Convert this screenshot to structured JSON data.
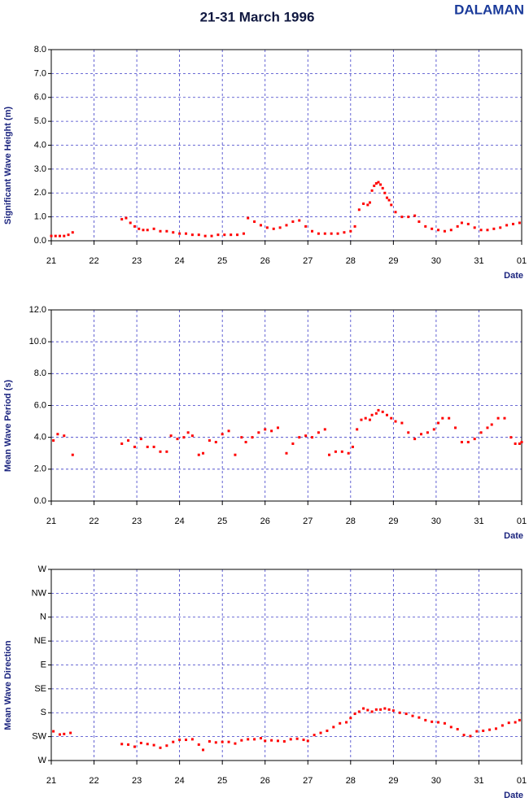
{
  "title": "21-31 March 1996",
  "station": "DALAMAN",
  "chart_data": [
    {
      "type": "scatter",
      "y_label": "Significant Wave Height (m)",
      "x_label": "Date",
      "color": "#ff0000",
      "grid": true,
      "xlim": [
        21,
        32
      ],
      "xticks": [
        21,
        22,
        23,
        24,
        25,
        26,
        27,
        28,
        29,
        30,
        31,
        {
          "value": 32,
          "label": "01"
        }
      ],
      "ylim": [
        0,
        8
      ],
      "yticks": [
        {
          "value": 0,
          "label": "0.0"
        },
        {
          "value": 1,
          "label": "1.0"
        },
        {
          "value": 2,
          "label": "2.0"
        },
        {
          "value": 3,
          "label": "3.0"
        },
        {
          "value": 4,
          "label": "4.0"
        },
        {
          "value": 5,
          "label": "5.0"
        },
        {
          "value": 6,
          "label": "6.0"
        },
        {
          "value": 7,
          "label": "7.0"
        },
        {
          "value": 8,
          "label": "8.0"
        }
      ],
      "x": [
        21.0,
        21.1,
        21.2,
        21.3,
        21.4,
        21.5,
        22.65,
        22.75,
        22.85,
        22.95,
        23.05,
        23.15,
        23.25,
        23.4,
        23.55,
        23.7,
        23.85,
        24.0,
        24.15,
        24.3,
        24.45,
        24.6,
        24.75,
        24.9,
        25.05,
        25.2,
        25.35,
        25.5,
        25.6,
        25.75,
        25.9,
        26.05,
        26.2,
        26.35,
        26.5,
        26.65,
        26.8,
        26.95,
        27.1,
        27.25,
        27.4,
        27.55,
        27.7,
        27.85,
        28.0,
        28.1,
        28.2,
        28.3,
        28.4,
        28.45,
        28.5,
        28.55,
        28.6,
        28.65,
        28.7,
        28.75,
        28.8,
        28.85,
        28.9,
        28.95,
        29.05,
        29.2,
        29.35,
        29.5,
        29.6,
        29.75,
        29.9,
        30.05,
        30.2,
        30.35,
        30.5,
        30.6,
        30.75,
        30.9,
        31.05,
        31.2,
        31.35,
        31.5,
        31.65,
        31.8,
        31.95
      ],
      "values": [
        0.2,
        0.2,
        0.2,
        0.2,
        0.25,
        0.35,
        0.9,
        0.95,
        0.75,
        0.6,
        0.5,
        0.45,
        0.45,
        0.5,
        0.4,
        0.4,
        0.35,
        0.3,
        0.3,
        0.25,
        0.25,
        0.2,
        0.2,
        0.25,
        0.25,
        0.25,
        0.25,
        0.3,
        0.95,
        0.8,
        0.65,
        0.55,
        0.5,
        0.55,
        0.65,
        0.8,
        0.85,
        0.6,
        0.4,
        0.3,
        0.3,
        0.3,
        0.3,
        0.35,
        0.4,
        0.6,
        1.3,
        1.55,
        1.5,
        1.6,
        2.1,
        2.3,
        2.4,
        2.45,
        2.35,
        2.2,
        2.0,
        1.8,
        1.7,
        1.5,
        1.2,
        1.0,
        1.0,
        1.05,
        0.8,
        0.6,
        0.5,
        0.45,
        0.4,
        0.45,
        0.6,
        0.75,
        0.7,
        0.55,
        0.45,
        0.45,
        0.5,
        0.55,
        0.65,
        0.7,
        0.75
      ]
    },
    {
      "type": "scatter",
      "y_label": "Mean Wave Period (s)",
      "x_label": "Date",
      "color": "#ff0000",
      "grid": true,
      "xlim": [
        21,
        32
      ],
      "xticks": [
        21,
        22,
        23,
        24,
        25,
        26,
        27,
        28,
        29,
        30,
        31,
        {
          "value": 32,
          "label": "01"
        }
      ],
      "ylim": [
        0,
        12
      ],
      "yticks": [
        {
          "value": 0,
          "label": "0.0"
        },
        {
          "value": 2,
          "label": "2.0"
        },
        {
          "value": 4,
          "label": "4.0"
        },
        {
          "value": 6,
          "label": "6.0"
        },
        {
          "value": 8,
          "label": "8.0"
        },
        {
          "value": 10,
          "label": "10.0"
        },
        {
          "value": 12,
          "label": "12.0"
        }
      ],
      "x": [
        21.05,
        21.15,
        21.3,
        21.5,
        22.65,
        22.8,
        22.95,
        23.1,
        23.25,
        23.4,
        23.55,
        23.7,
        23.8,
        23.95,
        24.1,
        24.2,
        24.3,
        24.45,
        24.55,
        24.7,
        24.85,
        25.0,
        25.15,
        25.3,
        25.45,
        25.55,
        25.7,
        25.85,
        26.0,
        26.15,
        26.3,
        26.5,
        26.65,
        26.8,
        26.95,
        27.1,
        27.25,
        27.4,
        27.5,
        27.65,
        27.8,
        27.95,
        28.05,
        28.15,
        28.25,
        28.35,
        28.45,
        28.5,
        28.6,
        28.65,
        28.75,
        28.85,
        28.95,
        29.05,
        29.2,
        29.35,
        29.5,
        29.65,
        29.8,
        29.95,
        30.05,
        30.15,
        30.3,
        30.45,
        30.6,
        30.75,
        30.9,
        31.05,
        31.2,
        31.3,
        31.45,
        31.6,
        31.75,
        31.85,
        31.95,
        32.0
      ],
      "values": [
        3.8,
        4.2,
        4.1,
        2.9,
        3.6,
        3.8,
        3.4,
        3.9,
        3.4,
        3.4,
        3.1,
        3.1,
        4.1,
        3.9,
        4.0,
        4.3,
        4.1,
        2.9,
        3.0,
        3.8,
        3.7,
        4.2,
        4.4,
        2.9,
        4.0,
        3.7,
        4.0,
        4.3,
        4.5,
        4.4,
        4.6,
        3.0,
        3.6,
        4.0,
        4.1,
        4.0,
        4.3,
        4.5,
        2.9,
        3.1,
        3.1,
        3.0,
        3.4,
        4.5,
        5.1,
        5.2,
        5.1,
        5.4,
        5.5,
        5.7,
        5.6,
        5.4,
        5.2,
        5.0,
        4.9,
        4.3,
        3.9,
        4.2,
        4.3,
        4.5,
        4.9,
        5.2,
        5.2,
        4.6,
        3.7,
        3.7,
        3.9,
        4.3,
        4.6,
        4.8,
        5.2,
        5.2,
        4.0,
        3.6,
        3.6,
        3.7
      ]
    },
    {
      "type": "scatter",
      "y_label": "Mean Wave Direction",
      "x_label": "Date",
      "color": "#ff0000",
      "grid": true,
      "xlim": [
        21,
        32
      ],
      "xticks": [
        21,
        22,
        23,
        24,
        25,
        26,
        27,
        28,
        29,
        30,
        31,
        {
          "value": 32,
          "label": "01"
        }
      ],
      "ylim": [
        270,
        -90
      ],
      "yticks": [
        {
          "value": 270,
          "label": "W"
        },
        {
          "value": 225,
          "label": "SW"
        },
        {
          "value": 180,
          "label": "S"
        },
        {
          "value": 135,
          "label": "SE"
        },
        {
          "value": 90,
          "label": "E"
        },
        {
          "value": 45,
          "label": "NE"
        },
        {
          "value": 0,
          "label": "N"
        },
        {
          "value": -45,
          "label": "NW"
        },
        {
          "value": -90,
          "label": "W"
        }
      ],
      "x": [
        21.05,
        21.2,
        21.3,
        21.45,
        22.65,
        22.8,
        22.95,
        23.1,
        23.25,
        23.4,
        23.55,
        23.7,
        23.85,
        24.0,
        24.15,
        24.3,
        24.45,
        24.55,
        24.7,
        24.85,
        25.0,
        25.15,
        25.3,
        25.45,
        25.6,
        25.75,
        25.9,
        26.0,
        26.15,
        26.3,
        26.45,
        26.6,
        26.75,
        26.9,
        27.0,
        27.15,
        27.3,
        27.45,
        27.6,
        27.75,
        27.9,
        28.0,
        28.1,
        28.2,
        28.3,
        28.4,
        28.5,
        28.6,
        28.7,
        28.8,
        28.9,
        29.0,
        29.15,
        29.3,
        29.45,
        29.6,
        29.75,
        29.9,
        30.05,
        30.2,
        30.35,
        30.5,
        30.65,
        30.8,
        30.95,
        31.1,
        31.25,
        31.4,
        31.55,
        31.7,
        31.85,
        31.95
      ],
      "values": [
        215,
        221,
        220,
        218,
        239,
        240,
        244,
        237,
        239,
        241,
        246,
        242,
        235,
        231,
        231,
        230,
        240,
        250,
        234,
        236,
        235,
        235,
        238,
        232,
        230,
        230,
        228,
        233,
        232,
        233,
        234,
        230,
        229,
        231,
        233,
        222,
        218,
        214,
        207,
        200,
        198,
        190,
        182,
        178,
        172,
        175,
        178,
        174,
        174,
        172,
        174,
        176,
        180,
        182,
        186,
        189,
        194,
        197,
        198,
        200,
        207,
        211,
        222,
        224,
        215,
        214,
        212,
        210,
        204,
        199,
        198,
        194
      ]
    }
  ]
}
